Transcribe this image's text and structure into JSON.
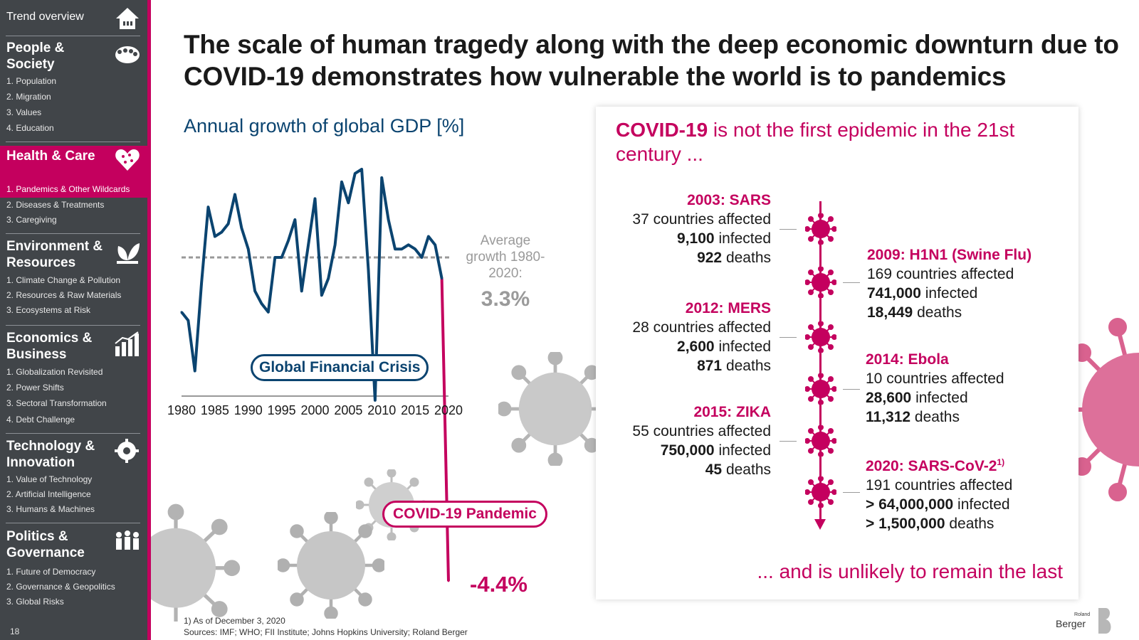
{
  "sidebar": {
    "top": {
      "label": "Trend overview",
      "icon": "home-icon"
    },
    "sections": [
      {
        "title": "People & Society",
        "icon": "crowd-icon",
        "items": [
          "1. Population",
          "2. Migration",
          "3. Values",
          "4. Education"
        ]
      },
      {
        "title": "Health & Care",
        "icon": "heart-icon",
        "active": true,
        "items": [
          "1. Pandemics & Other Wildcards",
          "2. Diseases & Treatments",
          "3. Caregiving"
        ]
      },
      {
        "title": "Environment & Resources",
        "icon": "leaf-icon",
        "items": [
          "1. Climate Change & Pollution",
          "2. Resources & Raw Materials",
          "3. Ecosystems at Risk"
        ]
      },
      {
        "title": "Economics & Business",
        "icon": "growth-icon",
        "items": [
          "1. Globalization Revisited",
          "2. Power Shifts",
          "3. Sectoral Transformation",
          "4. Debt Challenge"
        ]
      },
      {
        "title": "Technology & Innovation",
        "icon": "gear-brain-icon",
        "items": [
          "1. Value of Technology",
          "2. Artificial Intelligence",
          "3. Humans & Machines"
        ]
      },
      {
        "title": "Politics & Governance",
        "icon": "people-icon",
        "items": [
          "1. Future of Democracy",
          "2. Governance & Geopolitics",
          "3. Global Risks"
        ]
      }
    ],
    "page_number": "18"
  },
  "title": "The scale of human tragedy along with the deep economic downturn due to COVID-19 demonstrates how vulnerable the world is to pandemics",
  "chart": {
    "title": "Annual growth of global GDP [%]",
    "avg_label": "Average growth 1980-2020:",
    "avg_value": "3.3%",
    "gfc_label": "Global Financial Crisis",
    "covid_label": "COVID-19 Pandemic",
    "covid_value": "-4.4%"
  },
  "chart_data": {
    "type": "line",
    "title": "Annual growth of global GDP [%]",
    "xlabel": "",
    "ylabel": "",
    "x_ticks": [
      "1980",
      "1985",
      "1990",
      "1995",
      "2000",
      "2005",
      "2010",
      "2015",
      "2020"
    ],
    "x": [
      1980,
      1981,
      1982,
      1983,
      1984,
      1985,
      1986,
      1987,
      1988,
      1989,
      1990,
      1991,
      1992,
      1993,
      1994,
      1995,
      1996,
      1997,
      1998,
      1999,
      2000,
      2001,
      2002,
      2003,
      2004,
      2005,
      2006,
      2007,
      2008,
      2009,
      2010,
      2011,
      2012,
      2013,
      2014,
      2015,
      2016,
      2017,
      2018,
      2019,
      2020
    ],
    "y": [
      2.0,
      1.8,
      0.6,
      2.7,
      4.5,
      3.8,
      3.9,
      4.1,
      4.8,
      4.0,
      3.5,
      2.5,
      2.2,
      2.0,
      3.3,
      3.3,
      3.7,
      4.2,
      2.5,
      3.6,
      4.7,
      2.4,
      2.8,
      3.6,
      5.1,
      4.6,
      5.3,
      5.4,
      3.0,
      -0.1,
      5.2,
      4.2,
      3.5,
      3.5,
      3.6,
      3.5,
      3.3,
      3.8,
      3.6,
      2.8,
      -4.4
    ],
    "baseline": 0,
    "average": 3.3,
    "series": [
      {
        "name": "",
        "color": "#0b4470",
        "range": [
          1980,
          2019
        ]
      },
      {
        "name": "",
        "color": "#c4005e",
        "range": [
          2019,
          2020
        ]
      }
    ],
    "annotations": [
      "Global Financial Crisis",
      "COVID-19 Pandemic",
      "-4.4%",
      "Average growth 1980-2020:",
      "3.3%"
    ]
  },
  "panel": {
    "title_bold": "COVID-19",
    "title_rest": " is not the first epidemic in the 21st century ...",
    "footer": "... and is unlikely to remain the last",
    "events": [
      {
        "name": "2003: SARS",
        "countries": "37 countries affected",
        "infected_num": "9,100",
        "infected_lbl": " infected",
        "deaths_num": "922",
        "deaths_lbl": " deaths"
      },
      {
        "name": "2009: H1N1 (Swine Flu)",
        "countries": "169 countries affected",
        "infected_num": "741,000",
        "infected_lbl": " infected",
        "deaths_num": "18,449",
        "deaths_lbl": " deaths"
      },
      {
        "name": "2012: MERS",
        "countries": "28 countries affected",
        "infected_num": "2,600",
        "infected_lbl": " infected",
        "deaths_num": "871",
        "deaths_lbl": " deaths"
      },
      {
        "name": "2014: Ebola",
        "countries": "10 countries affected",
        "infected_num": "28,600",
        "infected_lbl": " infected",
        "deaths_num": "11,312",
        "deaths_lbl": " deaths"
      },
      {
        "name": "2015: ZIKA",
        "countries": "55 countries affected",
        "infected_num": "750,000",
        "infected_lbl": " infected",
        "deaths_num": "45",
        "deaths_lbl": " deaths"
      },
      {
        "name": "2020: SARS-CoV-2",
        "name_sup": "1)",
        "countries": "191 countries affected",
        "infected_num": "> 64,000,000",
        "infected_lbl": " infected",
        "deaths_num": "> 1,500,000",
        "deaths_lbl": " deaths"
      }
    ]
  },
  "footnotes": {
    "line1": "1) As of December 3, 2020",
    "line2": "Sources: IMF; WHO; FII Institute; Johns Hopkins University; Roland Berger"
  },
  "logo": {
    "small": "Roland",
    "big": "Berger"
  },
  "colors": {
    "accent": "#c4005e",
    "navy": "#0b4470",
    "sidebar": "#414549",
    "grey": "#9a9a9a"
  }
}
